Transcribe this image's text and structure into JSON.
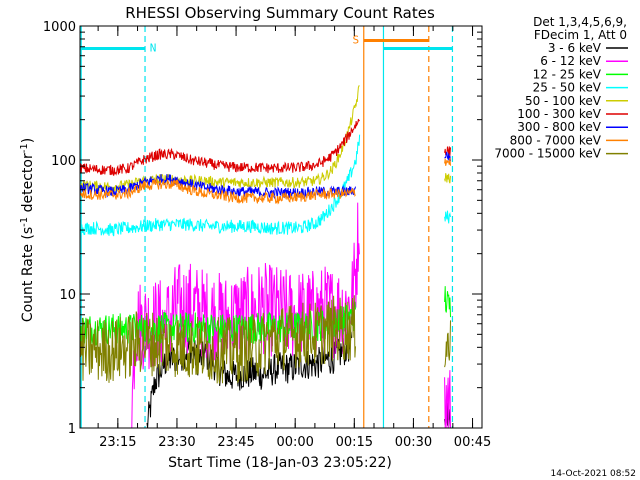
{
  "chart_data": {
    "type": "line",
    "title": "RHESSI Observing Summary Count Rates",
    "xlabel": "Start Time (18-Jan-03 23:05:22)",
    "ylabel_main": "Count Rate (s",
    "ylabel_sup1": "-1",
    "ylabel_mid": " detector",
    "ylabel_sup2": "-1",
    "ylabel_end": ")",
    "yscale": "log",
    "ylim": [
      1,
      1000
    ],
    "xlim_minutes": [
      0,
      102
    ],
    "xticks": [
      {
        "label": "23:15",
        "minute": 9.6
      },
      {
        "label": "23:30",
        "minute": 24.6
      },
      {
        "label": "23:45",
        "minute": 39.6
      },
      {
        "label": "00:00",
        "minute": 54.6
      },
      {
        "label": "00:15",
        "minute": 69.6
      },
      {
        "label": "00:30",
        "minute": 84.6
      },
      {
        "label": "00:45",
        "minute": 99.6
      }
    ],
    "yticks": [
      {
        "label": "1",
        "value": 1
      },
      {
        "label": "10",
        "value": 10
      },
      {
        "label": "100",
        "value": 100
      },
      {
        "label": "1000",
        "value": 1000
      }
    ],
    "legend_header": [
      "Det 1,3,4,5,6,9,",
      "FDecim 1, Att 0"
    ],
    "legend_position": "right",
    "series": [
      {
        "name": "3 - 6 keV",
        "color": "#000000",
        "segments": [
          {
            "minutes": [
              17,
              18,
              19,
              20,
              22,
              24,
              26,
              28,
              30,
              32,
              34,
              36,
              38,
              40,
              42,
              44,
              46,
              48,
              50,
              52,
              54,
              56,
              58,
              60,
              62,
              64,
              66,
              68,
              69
            ],
            "values": [
              1,
              1.5,
              2.2,
              2.5,
              3.2,
              3.3,
              3.5,
              4,
              3.2,
              3.5,
              3.0,
              2.6,
              2.4,
              2.5,
              2.5,
              2.6,
              2.5,
              2.6,
              2.8,
              2.8,
              2.8,
              3.0,
              3.0,
              3.0,
              3.2,
              3.3,
              3.6,
              4.0,
              4.0
            ]
          },
          {
            "minutes": [
              92.5,
              93,
              94
            ],
            "values": [
              1,
              1.5,
              1
            ]
          }
        ]
      },
      {
        "name": "6 - 12 keV",
        "color": "#ff00ff",
        "segments": [
          {
            "minutes": [
              13,
              14,
              16,
              18,
              20,
              22,
              24,
              26,
              28,
              30,
              32,
              34,
              36,
              38,
              40,
              42,
              44,
              46,
              48,
              50,
              52,
              54,
              56,
              58,
              60,
              62,
              64,
              66,
              68,
              69,
              70,
              71
            ],
            "values": [
              1,
              6,
              6,
              6,
              6,
              6,
              7.5,
              8,
              8,
              7.5,
              7,
              7,
              6.5,
              6.5,
              7,
              7,
              7.5,
              8,
              7.5,
              7.5,
              7,
              7,
              7,
              7,
              7,
              7.5,
              7.5,
              7.5,
              8,
              9,
              15,
              45
            ]
          },
          {
            "minutes": [
              92.5,
              93,
              94
            ],
            "values": [
              1.3,
              1.6,
              1.4
            ]
          }
        ]
      },
      {
        "name": "12 - 25 keV",
        "color": "#00ff00",
        "segments": [
          {
            "minutes": [
              0,
              4,
              8,
              12,
              16,
              20,
              24,
              28,
              32,
              36,
              40,
              44,
              48,
              52,
              56,
              60,
              64,
              68,
              70
            ],
            "values": [
              5.5,
              5.5,
              5.5,
              5.5,
              5.5,
              5.6,
              5.5,
              5.6,
              5.6,
              5.5,
              5.5,
              5.6,
              5.6,
              5.6,
              5.7,
              5.8,
              6.0,
              6.5,
              7
            ]
          },
          {
            "minutes": [
              92.5,
              93,
              94
            ],
            "values": [
              10,
              8.5,
              8
            ]
          }
        ]
      },
      {
        "name": "25 - 50 keV",
        "color": "#00ffff",
        "segments": [
          {
            "minutes": [
              0,
              4,
              8,
              12,
              16,
              20,
              24,
              28,
              32,
              36,
              40,
              44,
              48,
              52,
              56,
              60,
              62,
              64,
              66,
              68,
              70,
              71
            ],
            "values": [
              31,
              31,
              30,
              31,
              32,
              33,
              33,
              33,
              32,
              32,
              32,
              32,
              31,
              31,
              31,
              34,
              38,
              45,
              55,
              70,
              100,
              150
            ]
          },
          {
            "minutes": [
              92.5,
              93,
              94
            ],
            "values": [
              36,
              38,
              37
            ]
          }
        ]
      },
      {
        "name": "50 - 100 keV",
        "color": "#cccc00",
        "segments": [
          {
            "minutes": [
              0,
              4,
              8,
              12,
              16,
              20,
              24,
              28,
              32,
              36,
              40,
              44,
              48,
              52,
              56,
              60,
              62,
              64,
              66,
              68,
              70,
              71
            ],
            "values": [
              65,
              64,
              63,
              65,
              70,
              72,
              72,
              70,
              70,
              68,
              68,
              68,
              68,
              68,
              68,
              70,
              75,
              85,
              110,
              160,
              260,
              360
            ]
          },
          {
            "minutes": [
              92.5,
              93,
              94
            ],
            "values": [
              75,
              74,
              73
            ]
          }
        ]
      },
      {
        "name": "100 - 300 keV",
        "color": "#dd0000",
        "segments": [
          {
            "minutes": [
              0,
              4,
              8,
              12,
              16,
              20,
              24,
              28,
              32,
              36,
              40,
              44,
              48,
              52,
              56,
              60,
              62,
              64,
              66,
              68,
              70,
              71
            ],
            "values": [
              87,
              85,
              84,
              86,
              100,
              110,
              110,
              100,
              95,
              90,
              88,
              88,
              87,
              87,
              88,
              92,
              98,
              108,
              125,
              150,
              185,
              200
            ]
          },
          {
            "minutes": [
              92.5,
              93,
              94
            ],
            "values": [
              120,
              118,
              115
            ]
          }
        ]
      },
      {
        "name": "300 - 800 keV",
        "color": "#0000ff",
        "segments": [
          {
            "minutes": [
              0,
              4,
              8,
              12,
              16,
              20,
              24,
              28,
              32,
              36,
              40,
              44,
              48,
              52,
              56,
              60,
              64,
              68,
              70
            ],
            "values": [
              62,
              60,
              58,
              60,
              68,
              72,
              72,
              66,
              62,
              60,
              58,
              58,
              57,
              57,
              57,
              58,
              58,
              58,
              60
            ]
          },
          {
            "minutes": [
              92.5,
              93,
              94
            ],
            "values": [
              110,
              108,
              105
            ]
          }
        ]
      },
      {
        "name": "800 - 7000 keV",
        "color": "#ff8000",
        "segments": [
          {
            "minutes": [
              0,
              4,
              8,
              12,
              16,
              20,
              24,
              28,
              32,
              36,
              40,
              44,
              48,
              52,
              56,
              60,
              64,
              68,
              70
            ],
            "values": [
              56,
              55,
              55,
              56,
              64,
              66,
              66,
              60,
              56,
              54,
              52,
              52,
              52,
              52,
              53,
              55,
              56,
              56,
              58
            ]
          },
          {
            "minutes": [
              92.5,
              93,
              94
            ],
            "values": [
              100,
              98,
              97
            ]
          }
        ]
      },
      {
        "name": "7000 - 15000 keV",
        "color": "#808000",
        "segments": [
          {
            "minutes": [
              0,
              4,
              8,
              12,
              16,
              20,
              24,
              28,
              32,
              36,
              40,
              44,
              48,
              52,
              56,
              60,
              64,
              68,
              70
            ],
            "values": [
              3.8,
              3.8,
              3.8,
              4,
              4.5,
              4.2,
              4.2,
              4,
              3.8,
              3.8,
              3.8,
              4,
              4.5,
              4.8,
              5,
              5,
              5.5,
              5.5,
              5.5
            ]
          },
          {
            "minutes": [
              92.5,
              93,
              94
            ],
            "values": [
              4.5,
              4.2,
              4.2
            ]
          }
        ]
      }
    ],
    "markers": [
      {
        "label": "N",
        "kind": "night",
        "color": "#00e5ee",
        "start_minute": 0,
        "end_minute": 16.5,
        "level": 680
      },
      {
        "label": "S",
        "kind": "saa",
        "color": "#ff8000",
        "start_minute": 72,
        "end_minute": 88.5,
        "level": 780
      },
      {
        "kind": "night",
        "color": "#00e5ee",
        "start_minute": 77,
        "end_minute": 94.5,
        "level": 680
      }
    ],
    "vlines": [
      {
        "minute": 0.3,
        "color": "#00e5ee",
        "style": "solid"
      },
      {
        "minute": 16.5,
        "color": "#00e5ee",
        "style": "dashed"
      },
      {
        "minute": 72,
        "color": "#ff8000",
        "style": "solid"
      },
      {
        "minute": 77,
        "color": "#00e5ee",
        "style": "solid"
      },
      {
        "minute": 88.5,
        "color": "#ff8000",
        "style": "dashed"
      },
      {
        "minute": 94.5,
        "color": "#00e5ee",
        "style": "dashed"
      }
    ],
    "timestamp": "14-Oct-2021 08:52"
  }
}
